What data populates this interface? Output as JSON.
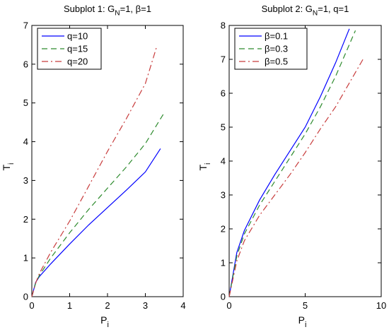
{
  "colors": {
    "blue": "#0000ff",
    "green": "#2e8b2e",
    "red": "#c83c3c",
    "axis": "#000000"
  },
  "chart_data": [
    {
      "type": "line",
      "title": {
        "pre": "Subplot 1: G",
        "sub": "N",
        "post": "=1, β=1"
      },
      "xlabel": {
        "main": "P",
        "sub": "i"
      },
      "ylabel": {
        "main": "T",
        "sub": "i"
      },
      "xlim": [
        0,
        4
      ],
      "ylim": [
        0,
        7
      ],
      "xticks": [
        0,
        1,
        2,
        3,
        4
      ],
      "yticks": [
        0,
        1,
        2,
        3,
        4,
        5,
        6,
        7
      ],
      "grid": false,
      "legend": "top-left",
      "series": [
        {
          "name": "q=10",
          "color": "blue",
          "dash": "solid",
          "x": [
            0,
            0.1,
            0.2,
            0.5,
            1.0,
            1.5,
            2.0,
            2.5,
            3.0,
            3.4
          ],
          "y": [
            0,
            0.37,
            0.52,
            0.85,
            1.36,
            1.85,
            2.3,
            2.75,
            3.22,
            3.82
          ]
        },
        {
          "name": "q=15",
          "color": "green",
          "dash": "dashed",
          "x": [
            0,
            0.1,
            0.2,
            0.5,
            1.0,
            1.5,
            2.0,
            2.5,
            3.0,
            3.5
          ],
          "y": [
            0,
            0.35,
            0.55,
            1.0,
            1.65,
            2.25,
            2.8,
            3.35,
            3.95,
            4.75
          ]
        },
        {
          "name": "q=20",
          "color": "red",
          "dash": "dashdot",
          "x": [
            0,
            0.1,
            0.2,
            0.5,
            1.0,
            1.5,
            2.0,
            2.5,
            3.0,
            3.3
          ],
          "y": [
            0,
            0.35,
            0.6,
            1.15,
            1.95,
            2.85,
            3.75,
            4.6,
            5.5,
            6.45
          ]
        }
      ]
    },
    {
      "type": "line",
      "title": {
        "pre": "Subplot 2: G",
        "sub": "N",
        "post": "=1, q=1"
      },
      "xlabel": {
        "main": "P",
        "sub": "i"
      },
      "ylabel": {
        "main": "T",
        "sub": "i"
      },
      "xlim": [
        0,
        10
      ],
      "ylim": [
        0,
        8
      ],
      "xticks": [
        0,
        5,
        10
      ],
      "yticks": [
        0,
        1,
        2,
        3,
        4,
        5,
        6,
        7,
        8
      ],
      "grid": false,
      "legend": "top-left",
      "series": [
        {
          "name": "β=0.1",
          "color": "blue",
          "dash": "solid",
          "x": [
            0,
            0.5,
            1,
            2,
            3,
            4,
            5,
            6,
            7,
            7.9
          ],
          "y": [
            0,
            1.3,
            1.95,
            2.85,
            3.6,
            4.3,
            5.0,
            5.9,
            6.9,
            7.9
          ]
        },
        {
          "name": "β=0.3",
          "color": "green",
          "dash": "dashed",
          "x": [
            0,
            0.5,
            1,
            2,
            3,
            4,
            5,
            6,
            7,
            8.3
          ],
          "y": [
            0,
            1.2,
            1.85,
            2.7,
            3.4,
            4.1,
            4.8,
            5.6,
            6.5,
            7.85
          ]
        },
        {
          "name": "β=0.5",
          "color": "red",
          "dash": "dashdot",
          "x": [
            0,
            0.5,
            1,
            2,
            3,
            4,
            5,
            6,
            7,
            8.8
          ],
          "y": [
            0,
            1.05,
            1.65,
            2.4,
            3.0,
            3.6,
            4.25,
            4.95,
            5.6,
            7.0
          ]
        }
      ]
    }
  ]
}
